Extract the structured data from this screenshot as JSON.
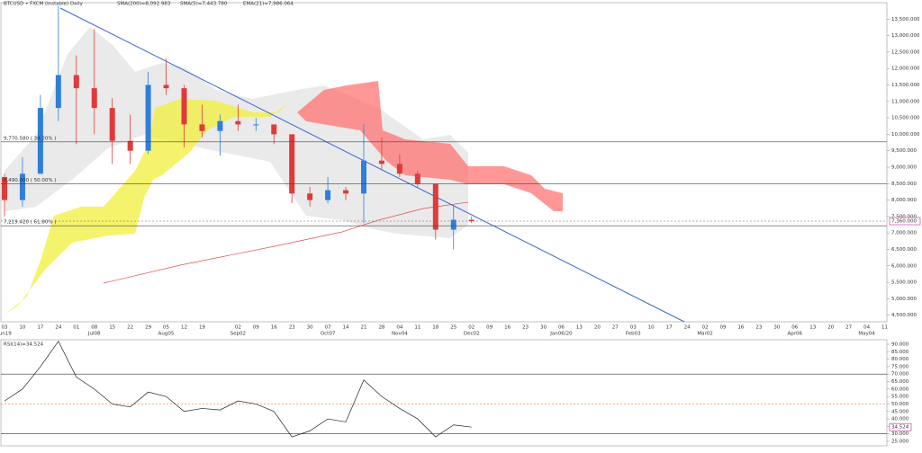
{
  "chart_data": [
    {
      "type": "candlestick",
      "title": "BTCUSD • FXCM (Instable) Daily",
      "indicators": [
        "SMA(200)=8,092.983",
        "SMA(5)=7,443.780",
        "EMA(21)=7,986.064"
      ],
      "categories": [
        "03",
        "10",
        "17",
        "24",
        "01",
        "08",
        "15",
        "22",
        "29",
        "05",
        "12",
        "19",
        null,
        "02",
        "09",
        "16",
        "23",
        "30",
        "07",
        "14",
        "21",
        "28",
        "04",
        "11",
        "18",
        "25",
        "02",
        "09",
        "16",
        "23",
        "30",
        "06",
        "13",
        "20",
        "27",
        "03",
        "10",
        "17",
        "24",
        "02",
        "09",
        "16",
        "23",
        "30",
        "06",
        "13",
        "20",
        "27",
        "04",
        "11"
      ],
      "month_labels": [
        "Jun19",
        null,
        null,
        null,
        null,
        "Jul08",
        null,
        null,
        null,
        "Aug05",
        null,
        null,
        null,
        "Sep02",
        null,
        null,
        null,
        null,
        "Oct07",
        null,
        null,
        null,
        "Nov04",
        null,
        null,
        null,
        "Dec02",
        null,
        null,
        null,
        null,
        "Jan06/20",
        null,
        null,
        null,
        "Feb03",
        null,
        null,
        null,
        "Mar02",
        null,
        null,
        null,
        null,
        "Apr06",
        null,
        null,
        null,
        "May04",
        null
      ],
      "open": [
        8700,
        8000,
        8800,
        10800,
        11800,
        11400,
        10800,
        9800,
        9500,
        11500,
        11400,
        10300,
        10100,
        10400,
        10300,
        10300,
        10000,
        8200,
        8000,
        8300,
        8200,
        9200,
        9100,
        8800,
        8500,
        7100,
        7400,
        null,
        null,
        null,
        null,
        null,
        null,
        null,
        null,
        null,
        null,
        null,
        null,
        null,
        null,
        null,
        null,
        null,
        null,
        null,
        null,
        null,
        null,
        null
      ],
      "high": [
        8800,
        9300,
        11200,
        13900,
        12400,
        13200,
        11100,
        10600,
        11900,
        12300,
        11500,
        10900,
        10600,
        10900,
        10500,
        10300,
        10000,
        8400,
        8700,
        8400,
        10300,
        9900,
        9400,
        8900,
        8500,
        7850,
        7500,
        null,
        null,
        null,
        null,
        null,
        null,
        null,
        null,
        null,
        null,
        null,
        null,
        null,
        null,
        null,
        null,
        null,
        null,
        null,
        null,
        null,
        null,
        null
      ],
      "low": [
        7500,
        7800,
        8800,
        10400,
        9700,
        10000,
        9100,
        9100,
        9400,
        11200,
        9600,
        9900,
        9350,
        10100,
        10100,
        9700,
        7900,
        7800,
        7900,
        8000,
        7300,
        8900,
        8700,
        8400,
        6800,
        6500,
        7300,
        null,
        null,
        null,
        null,
        null,
        null,
        null,
        null,
        null,
        null,
        null,
        null,
        null,
        null,
        null,
        null,
        null,
        null,
        null,
        null,
        null,
        null,
        null
      ],
      "close": [
        8000,
        8800,
        10800,
        11800,
        11400,
        10800,
        9800,
        9500,
        11500,
        11400,
        10300,
        10100,
        10400,
        10300,
        10300,
        10000,
        8200,
        8000,
        8300,
        8200,
        9200,
        9100,
        8800,
        8500,
        7100,
        7400,
        7360,
        null,
        null,
        null,
        null,
        null,
        null,
        null,
        null,
        null,
        null,
        null,
        null,
        null,
        null,
        null,
        null,
        null,
        null,
        null,
        null,
        null,
        null,
        null
      ],
      "up_color": "#2f7fd8",
      "down_color": "#e03a3a",
      "ylim": [
        4300,
        14000
      ],
      "yticks": [
        {
          "value": 4500,
          "label": "4,500.000"
        },
        {
          "value": 5000,
          "label": "5,000.000"
        },
        {
          "value": 5500,
          "label": "5,500.000"
        },
        {
          "value": 6000,
          "label": "6,000.000"
        },
        {
          "value": 6500,
          "label": "6,500.000"
        },
        {
          "value": 7000,
          "label": "7,000.000"
        },
        {
          "value": 7500,
          "label": "7,500.000"
        },
        {
          "value": 8000,
          "label": "8,000.000"
        },
        {
          "value": 8500,
          "label": "8,500.000"
        },
        {
          "value": 9000,
          "label": "9,000.000"
        },
        {
          "value": 9500,
          "label": "9,500.000"
        },
        {
          "value": 10000,
          "label": "10,000.000"
        },
        {
          "value": 10500,
          "label": "10,500.000"
        },
        {
          "value": 11000,
          "label": "11,000.000"
        },
        {
          "value": 11500,
          "label": "11,500.000"
        },
        {
          "value": 12000,
          "label": "12,000.000"
        },
        {
          "value": 12500,
          "label": "12,500.000"
        },
        {
          "value": 13000,
          "label": "13,000.000"
        },
        {
          "value": 13500,
          "label": "13,500.000"
        }
      ],
      "levels": [
        {
          "value": 9770.58,
          "label": "9,770.580 ( 38.20% )"
        },
        {
          "value": 8490,
          "label": "8,490.000 ( 50.00% )"
        },
        {
          "value": 7219.42,
          "label": "7,219.420 ( 61.80% )"
        }
      ],
      "last_price": {
        "value": 7360,
        "label": "7,360.000"
      }
    },
    {
      "type": "line",
      "title": "RSI(14)=34.524",
      "values": [
        52,
        60,
        75,
        92,
        68,
        60,
        50,
        48,
        58,
        55,
        45,
        47,
        46,
        52,
        50,
        45,
        28,
        32,
        40,
        38,
        66,
        55,
        47,
        40,
        28,
        36,
        34.524,
        null,
        null,
        null,
        null,
        null,
        null,
        null,
        null,
        null,
        null,
        null,
        null,
        null,
        null,
        null,
        null,
        null,
        null,
        null,
        null,
        null,
        null,
        null
      ],
      "color": "#222222",
      "ylim": [
        22,
        93
      ],
      "yticks": [
        {
          "value": 25,
          "label": "25.000"
        },
        {
          "value": 30,
          "label": "30.000"
        },
        {
          "value": 35,
          "label": "35.000"
        },
        {
          "value": 40,
          "label": "40.000"
        },
        {
          "value": 45,
          "label": "45.000"
        },
        {
          "value": 50,
          "label": "50.000"
        },
        {
          "value": 55,
          "label": "55.000"
        },
        {
          "value": 60,
          "label": "60.000"
        },
        {
          "value": 65,
          "label": "65.000"
        },
        {
          "value": 70,
          "label": "70.000"
        },
        {
          "value": 75,
          "label": "75.000"
        },
        {
          "value": 80,
          "label": "80.000"
        },
        {
          "value": 85,
          "label": "85.000"
        },
        {
          "value": 90,
          "label": "90.000"
        }
      ],
      "levels": [
        70,
        50,
        30
      ],
      "last_value": {
        "value": 34.524,
        "label": "34.524"
      }
    }
  ]
}
